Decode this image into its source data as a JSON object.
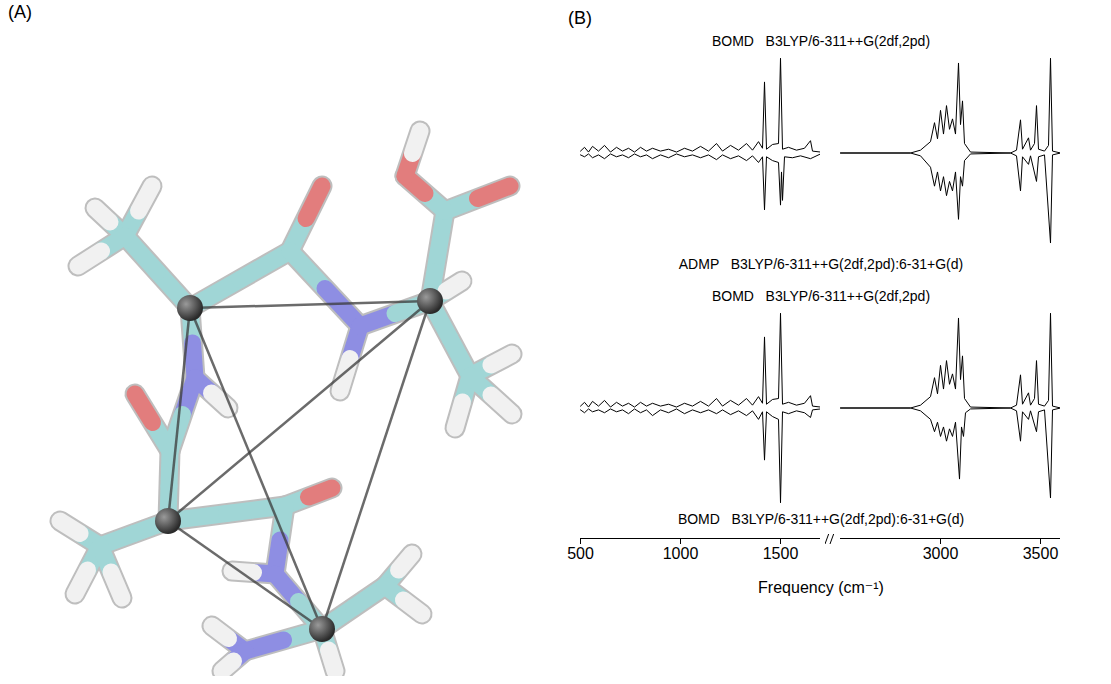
{
  "panels": [
    {
      "label": "(A)"
    },
    {
      "label": "(B)"
    }
  ],
  "chart_data": [
    {
      "type": "line",
      "xlim": [
        [
          500,
          1700
        ],
        [
          2500,
          3600
        ]
      ],
      "ylim": [
        -1.05,
        1.05
      ],
      "tick_labels": false,
      "series": [
        {
          "name": "BOMD   B3LYP/6-311++G(2df,2pd)",
          "color": "#000000",
          "x": [
            500,
            520,
            540,
            560,
            590,
            620,
            650,
            680,
            710,
            740,
            770,
            800,
            830,
            860,
            900,
            940,
            980,
            1020,
            1060,
            1100,
            1140,
            1180,
            1210,
            1250,
            1290,
            1330,
            1360,
            1390,
            1410,
            1420,
            1430,
            1460,
            1490,
            1500,
            1510,
            1540,
            1580,
            1620,
            1650,
            1660,
            1700,
            2500,
            2850,
            2900,
            2950,
            2970,
            2985,
            3000,
            3015,
            3030,
            3045,
            3060,
            3075,
            3090,
            3100,
            3110,
            3120,
            3150,
            3350,
            3380,
            3400,
            3410,
            3440,
            3450,
            3470,
            3480,
            3490,
            3520,
            3540,
            3550,
            3560,
            3600
          ],
          "values": [
            0.02,
            0.06,
            0.01,
            0.07,
            0.02,
            0.08,
            0.01,
            0.06,
            0.02,
            0.05,
            0.01,
            0.06,
            0.02,
            0.05,
            0.02,
            0.04,
            0.01,
            0.05,
            0.02,
            0.07,
            0.02,
            0.1,
            0.02,
            0.08,
            0.03,
            0.1,
            0.03,
            0.12,
            0.05,
            0.75,
            0.04,
            0.09,
            0.1,
            1.0,
            0.04,
            0.06,
            0.03,
            0.05,
            0.13,
            0.02,
            0.01,
            0,
            0,
            0.03,
            0.12,
            0.32,
            0.15,
            0.45,
            0.2,
            0.5,
            0.25,
            0.36,
            0.2,
            0.95,
            0.3,
            0.55,
            0.1,
            0.01,
            0,
            0.03,
            0.35,
            0.04,
            0.16,
            0.03,
            0.1,
            0.5,
            0.04,
            0.02,
            0.08,
            1.0,
            0.02,
            0
          ]
        },
        {
          "name": "ADMP   B3LYP/6-311++G(2df,2pd):6-31+G(d)",
          "color": "#000000",
          "x": [
            500,
            520,
            540,
            560,
            590,
            620,
            650,
            680,
            710,
            740,
            770,
            800,
            830,
            860,
            900,
            940,
            980,
            1020,
            1060,
            1100,
            1140,
            1180,
            1210,
            1250,
            1290,
            1330,
            1360,
            1390,
            1410,
            1420,
            1430,
            1460,
            1490,
            1500,
            1505,
            1510,
            1520,
            1560,
            1600,
            1650,
            1700,
            2500,
            2850,
            2900,
            2950,
            2970,
            2985,
            3000,
            3015,
            3030,
            3045,
            3060,
            3075,
            3090,
            3100,
            3110,
            3120,
            3150,
            3350,
            3380,
            3400,
            3410,
            3440,
            3450,
            3480,
            3490,
            3520,
            3550,
            3560,
            3600
          ],
          "values": [
            -0.02,
            -0.04,
            -0.01,
            -0.05,
            -0.02,
            -0.06,
            -0.01,
            -0.04,
            -0.02,
            -0.05,
            -0.01,
            -0.04,
            -0.02,
            -0.06,
            -0.02,
            -0.05,
            -0.01,
            -0.04,
            -0.02,
            -0.05,
            -0.02,
            -0.07,
            -0.02,
            -0.06,
            -0.03,
            -0.08,
            -0.03,
            -0.1,
            -0.04,
            -0.6,
            -0.04,
            -0.08,
            -0.1,
            -0.55,
            -0.2,
            -0.5,
            -0.04,
            -0.05,
            -0.03,
            -0.06,
            -0.01,
            0,
            0,
            -0.03,
            -0.15,
            -0.35,
            -0.2,
            -0.4,
            -0.25,
            -0.45,
            -0.3,
            -0.4,
            -0.2,
            -0.7,
            -0.25,
            -0.35,
            -0.08,
            -0.01,
            0,
            -0.03,
            -0.4,
            -0.04,
            -0.12,
            -0.03,
            -0.3,
            -0.04,
            -0.02,
            -0.95,
            -0.02,
            0
          ]
        }
      ]
    },
    {
      "type": "line",
      "xlabel": "Frequency (cm⁻¹)",
      "xlim": [
        [
          500,
          1700
        ],
        [
          2500,
          3600
        ]
      ],
      "xticks": [
        500,
        1000,
        1500,
        3000,
        3500
      ],
      "ylim": [
        -1.05,
        1.05
      ],
      "tick_labels": "x",
      "series": [
        {
          "name": "BOMD   B3LYP/6-311++G(2df,2pd)",
          "color": "#000000",
          "x": [
            500,
            520,
            540,
            560,
            590,
            620,
            650,
            680,
            710,
            740,
            770,
            800,
            830,
            860,
            900,
            940,
            980,
            1020,
            1060,
            1100,
            1140,
            1180,
            1210,
            1250,
            1290,
            1330,
            1360,
            1390,
            1410,
            1420,
            1430,
            1460,
            1490,
            1500,
            1510,
            1540,
            1580,
            1620,
            1650,
            1660,
            1700,
            2500,
            2850,
            2900,
            2950,
            2970,
            2985,
            3000,
            3015,
            3030,
            3045,
            3060,
            3075,
            3090,
            3100,
            3110,
            3120,
            3150,
            3350,
            3380,
            3400,
            3410,
            3440,
            3450,
            3470,
            3480,
            3490,
            3520,
            3540,
            3550,
            3560,
            3600
          ],
          "values": [
            0.02,
            0.06,
            0.01,
            0.07,
            0.02,
            0.08,
            0.01,
            0.06,
            0.02,
            0.05,
            0.01,
            0.06,
            0.02,
            0.05,
            0.02,
            0.04,
            0.01,
            0.05,
            0.02,
            0.07,
            0.02,
            0.1,
            0.02,
            0.08,
            0.03,
            0.1,
            0.03,
            0.12,
            0.05,
            0.75,
            0.04,
            0.09,
            0.1,
            1.0,
            0.04,
            0.06,
            0.03,
            0.05,
            0.13,
            0.02,
            0.01,
            0,
            0,
            0.03,
            0.12,
            0.32,
            0.15,
            0.45,
            0.2,
            0.5,
            0.25,
            0.36,
            0.2,
            0.95,
            0.3,
            0.55,
            0.1,
            0.01,
            0,
            0.03,
            0.35,
            0.04,
            0.16,
            0.03,
            0.1,
            0.5,
            0.04,
            0.02,
            0.08,
            1.0,
            0.02,
            0
          ]
        },
        {
          "name": "BOMD   B3LYP/6-311++G(2df,2pd):6-31+G(d)",
          "color": "#000000",
          "x": [
            500,
            520,
            540,
            560,
            590,
            620,
            650,
            680,
            710,
            740,
            770,
            800,
            830,
            860,
            900,
            940,
            980,
            1020,
            1060,
            1100,
            1140,
            1180,
            1210,
            1250,
            1290,
            1330,
            1360,
            1390,
            1410,
            1420,
            1430,
            1460,
            1490,
            1500,
            1510,
            1540,
            1580,
            1620,
            1650,
            1660,
            1700,
            2500,
            2850,
            2900,
            2950,
            2970,
            2985,
            3000,
            3015,
            3030,
            3045,
            3060,
            3075,
            3095,
            3105,
            3115,
            3125,
            3150,
            3350,
            3380,
            3400,
            3410,
            3440,
            3450,
            3480,
            3490,
            3520,
            3550,
            3560,
            3600
          ],
          "values": [
            -0.02,
            -0.05,
            -0.01,
            -0.04,
            -0.02,
            -0.05,
            -0.01,
            -0.04,
            -0.02,
            -0.06,
            -0.01,
            -0.05,
            -0.02,
            -0.08,
            -0.02,
            -0.05,
            -0.01,
            -0.06,
            -0.02,
            -0.05,
            -0.02,
            -0.06,
            -0.02,
            -0.07,
            -0.03,
            -0.08,
            -0.03,
            -0.12,
            -0.04,
            -0.55,
            -0.04,
            -0.09,
            -0.12,
            -1.0,
            -0.04,
            -0.06,
            -0.03,
            -0.05,
            -0.1,
            -0.02,
            -0.01,
            0,
            0,
            -0.03,
            -0.12,
            -0.25,
            -0.15,
            -0.3,
            -0.2,
            -0.35,
            -0.22,
            -0.3,
            -0.15,
            -0.75,
            -0.2,
            -0.3,
            -0.05,
            -0.01,
            0,
            -0.03,
            -0.35,
            -0.04,
            -0.12,
            -0.03,
            -0.25,
            -0.04,
            -0.02,
            -0.95,
            -0.02,
            0
          ]
        }
      ]
    }
  ]
}
